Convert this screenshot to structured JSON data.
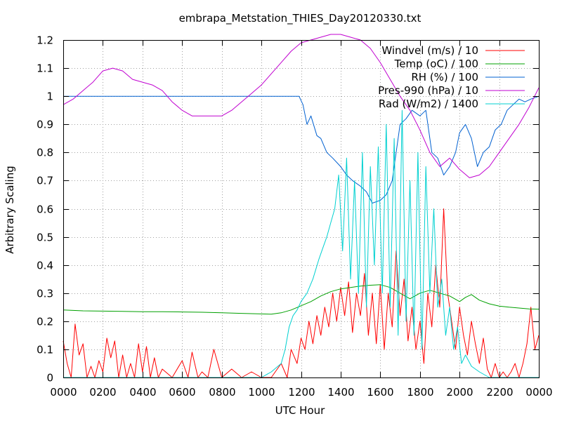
{
  "chart_data": {
    "type": "line",
    "title": "embrapa_Metstation_THIES_Day20120330.txt",
    "xlabel": "UTC Hour",
    "ylabel": "Arbitrary Scaling",
    "xlim": [
      0,
      24
    ],
    "ylim": [
      0,
      1.2
    ],
    "grid": true,
    "legend_position": "top-right",
    "x_tick_labels": [
      "0000",
      "0200",
      "0400",
      "0600",
      "0800",
      "1000",
      "1200",
      "1400",
      "1600",
      "1800",
      "2000",
      "2200",
      "0000"
    ],
    "y_tick_labels": [
      "0",
      "0.1",
      "0.2",
      "0.3",
      "0.4",
      "0.5",
      "0.6",
      "0.7",
      "0.8",
      "0.9",
      "1",
      "1.1",
      "1.2"
    ],
    "series": [
      {
        "name": "Windvel (m/s) / 10",
        "color": "#ff0000",
        "x": [
          0.0,
          0.2,
          0.4,
          0.6,
          0.8,
          1.0,
          1.2,
          1.4,
          1.6,
          1.8,
          2.0,
          2.2,
          2.4,
          2.6,
          2.8,
          3.0,
          3.2,
          3.4,
          3.6,
          3.8,
          4.0,
          4.2,
          4.4,
          4.6,
          4.8,
          5.0,
          5.5,
          6.0,
          6.3,
          6.5,
          6.8,
          7.0,
          7.3,
          7.6,
          8.0,
          8.5,
          9.0,
          9.5,
          10.0,
          10.5,
          11.0,
          11.3,
          11.5,
          11.8,
          12.0,
          12.2,
          12.4,
          12.6,
          12.8,
          13.0,
          13.2,
          13.4,
          13.6,
          13.8,
          14.0,
          14.2,
          14.4,
          14.6,
          14.8,
          15.0,
          15.2,
          15.4,
          15.6,
          15.8,
          16.0,
          16.2,
          16.4,
          16.6,
          16.8,
          17.0,
          17.2,
          17.4,
          17.6,
          17.8,
          18.0,
          18.2,
          18.4,
          18.6,
          18.8,
          19.0,
          19.2,
          19.4,
          19.6,
          19.8,
          20.0,
          20.2,
          20.4,
          20.6,
          20.8,
          21.0,
          21.2,
          21.4,
          21.6,
          21.8,
          22.0,
          22.2,
          22.4,
          22.6,
          22.8,
          23.0,
          23.2,
          23.4,
          23.6,
          23.8,
          24.0
        ],
        "values": [
          0.13,
          0.05,
          0.0,
          0.19,
          0.08,
          0.12,
          0.0,
          0.04,
          0.0,
          0.06,
          0.02,
          0.14,
          0.07,
          0.13,
          0.0,
          0.08,
          0.0,
          0.05,
          0.0,
          0.12,
          0.02,
          0.11,
          0.0,
          0.07,
          0.0,
          0.03,
          0.0,
          0.06,
          0.0,
          0.09,
          0.0,
          0.02,
          0.0,
          0.1,
          0.0,
          0.03,
          0.0,
          0.02,
          0.0,
          0.0,
          0.05,
          0.0,
          0.1,
          0.05,
          0.14,
          0.1,
          0.2,
          0.12,
          0.22,
          0.15,
          0.25,
          0.18,
          0.3,
          0.2,
          0.32,
          0.22,
          0.34,
          0.16,
          0.3,
          0.22,
          0.37,
          0.15,
          0.3,
          0.12,
          0.33,
          0.1,
          0.3,
          0.18,
          0.45,
          0.22,
          0.35,
          0.13,
          0.25,
          0.1,
          0.2,
          0.05,
          0.3,
          0.18,
          0.4,
          0.25,
          0.6,
          0.3,
          0.2,
          0.1,
          0.25,
          0.15,
          0.08,
          0.2,
          0.12,
          0.05,
          0.14,
          0.03,
          0.0,
          0.05,
          0.0,
          0.02,
          0.0,
          0.02,
          0.05,
          0.0,
          0.05,
          0.12,
          0.25,
          0.1,
          0.15
        ]
      },
      {
        "name": "Temp (oC) / 100",
        "color": "#00a000",
        "x": [
          0.0,
          1.0,
          2.0,
          3.0,
          4.0,
          5.0,
          6.0,
          7.0,
          8.0,
          9.0,
          10.0,
          10.5,
          11.0,
          11.5,
          12.0,
          12.5,
          13.0,
          13.5,
          14.0,
          14.5,
          15.0,
          15.5,
          16.0,
          16.5,
          17.0,
          17.5,
          18.0,
          18.5,
          19.0,
          19.5,
          20.0,
          20.3,
          20.6,
          21.0,
          21.5,
          22.0,
          22.5,
          23.0,
          23.5,
          24.0
        ],
        "values": [
          0.24,
          0.237,
          0.236,
          0.235,
          0.234,
          0.234,
          0.233,
          0.232,
          0.23,
          0.228,
          0.226,
          0.225,
          0.23,
          0.24,
          0.255,
          0.27,
          0.29,
          0.305,
          0.315,
          0.32,
          0.325,
          0.328,
          0.33,
          0.32,
          0.3,
          0.28,
          0.3,
          0.31,
          0.3,
          0.29,
          0.27,
          0.285,
          0.295,
          0.275,
          0.262,
          0.254,
          0.25,
          0.247,
          0.244,
          0.243
        ]
      },
      {
        "name": "RH (%) / 100",
        "color": "#0060d0",
        "x": [
          0.0,
          1.0,
          2.0,
          3.0,
          4.0,
          5.0,
          6.0,
          7.0,
          8.0,
          9.0,
          10.0,
          11.0,
          11.9,
          12.1,
          12.3,
          12.5,
          12.8,
          13.0,
          13.3,
          13.6,
          14.0,
          14.3,
          14.6,
          15.0,
          15.3,
          15.6,
          16.0,
          16.3,
          16.6,
          16.8,
          17.0,
          17.3,
          17.6,
          18.0,
          18.3,
          18.6,
          18.9,
          19.2,
          19.5,
          19.8,
          20.0,
          20.3,
          20.6,
          20.9,
          21.2,
          21.5,
          21.8,
          22.1,
          22.4,
          22.7,
          23.0,
          23.3,
          23.6,
          24.0
        ],
        "values": [
          1.0,
          1.0,
          1.0,
          1.0,
          1.0,
          1.0,
          1.0,
          1.0,
          1.0,
          1.0,
          1.0,
          1.0,
          1.0,
          0.97,
          0.9,
          0.93,
          0.86,
          0.85,
          0.8,
          0.78,
          0.75,
          0.72,
          0.7,
          0.68,
          0.66,
          0.62,
          0.63,
          0.65,
          0.7,
          0.8,
          0.9,
          0.92,
          0.95,
          0.93,
          0.95,
          0.8,
          0.78,
          0.72,
          0.75,
          0.8,
          0.87,
          0.9,
          0.85,
          0.75,
          0.8,
          0.82,
          0.88,
          0.9,
          0.95,
          0.97,
          0.99,
          0.98,
          0.99,
          1.0
        ]
      },
      {
        "name": "Pres-990 (hPa) / 10",
        "color": "#c000d0",
        "x": [
          0.0,
          0.5,
          1.0,
          1.5,
          2.0,
          2.5,
          3.0,
          3.5,
          4.0,
          4.5,
          5.0,
          5.5,
          6.0,
          6.5,
          7.0,
          7.5,
          8.0,
          8.5,
          9.0,
          9.5,
          10.0,
          10.5,
          11.0,
          11.5,
          12.0,
          12.5,
          13.0,
          13.5,
          14.0,
          14.5,
          15.0,
          15.5,
          16.0,
          16.5,
          17.0,
          17.5,
          18.0,
          18.5,
          19.0,
          19.5,
          20.0,
          20.5,
          21.0,
          21.5,
          22.0,
          22.5,
          23.0,
          23.5,
          24.0
        ],
        "values": [
          0.97,
          0.99,
          1.02,
          1.05,
          1.09,
          1.1,
          1.09,
          1.06,
          1.05,
          1.04,
          1.02,
          0.98,
          0.95,
          0.93,
          0.93,
          0.93,
          0.93,
          0.95,
          0.98,
          1.01,
          1.04,
          1.08,
          1.12,
          1.16,
          1.19,
          1.2,
          1.21,
          1.22,
          1.22,
          1.21,
          1.2,
          1.17,
          1.12,
          1.06,
          1.0,
          0.95,
          0.88,
          0.8,
          0.75,
          0.78,
          0.74,
          0.71,
          0.72,
          0.75,
          0.8,
          0.85,
          0.9,
          0.96,
          1.03
        ]
      },
      {
        "name": "Rad (W/m2) / 1400",
        "color": "#00d0d0",
        "x": [
          0.0,
          4.0,
          8.0,
          10.0,
          10.5,
          11.0,
          11.2,
          11.4,
          11.6,
          11.8,
          12.0,
          12.3,
          12.6,
          12.9,
          13.1,
          13.3,
          13.5,
          13.7,
          13.9,
          14.1,
          14.3,
          14.5,
          14.7,
          14.9,
          15.1,
          15.3,
          15.5,
          15.7,
          15.9,
          16.1,
          16.3,
          16.5,
          16.7,
          16.9,
          17.1,
          17.3,
          17.5,
          17.7,
          17.9,
          18.1,
          18.3,
          18.5,
          18.7,
          18.9,
          19.1,
          19.3,
          19.5,
          19.7,
          19.9,
          20.1,
          20.3,
          20.6,
          21.0,
          21.5,
          22.0,
          24.0
        ],
        "values": [
          0.0,
          0.0,
          0.0,
          0.0,
          0.02,
          0.05,
          0.1,
          0.18,
          0.22,
          0.24,
          0.27,
          0.3,
          0.35,
          0.42,
          0.46,
          0.5,
          0.55,
          0.6,
          0.72,
          0.45,
          0.78,
          0.35,
          0.7,
          0.3,
          0.8,
          0.25,
          0.75,
          0.4,
          0.82,
          0.3,
          0.9,
          0.25,
          0.85,
          0.15,
          0.95,
          0.2,
          0.7,
          0.15,
          0.8,
          0.1,
          0.75,
          0.3,
          0.6,
          0.25,
          0.35,
          0.15,
          0.25,
          0.1,
          0.18,
          0.05,
          0.08,
          0.04,
          0.02,
          0.0,
          0.0,
          0.0
        ]
      }
    ]
  }
}
